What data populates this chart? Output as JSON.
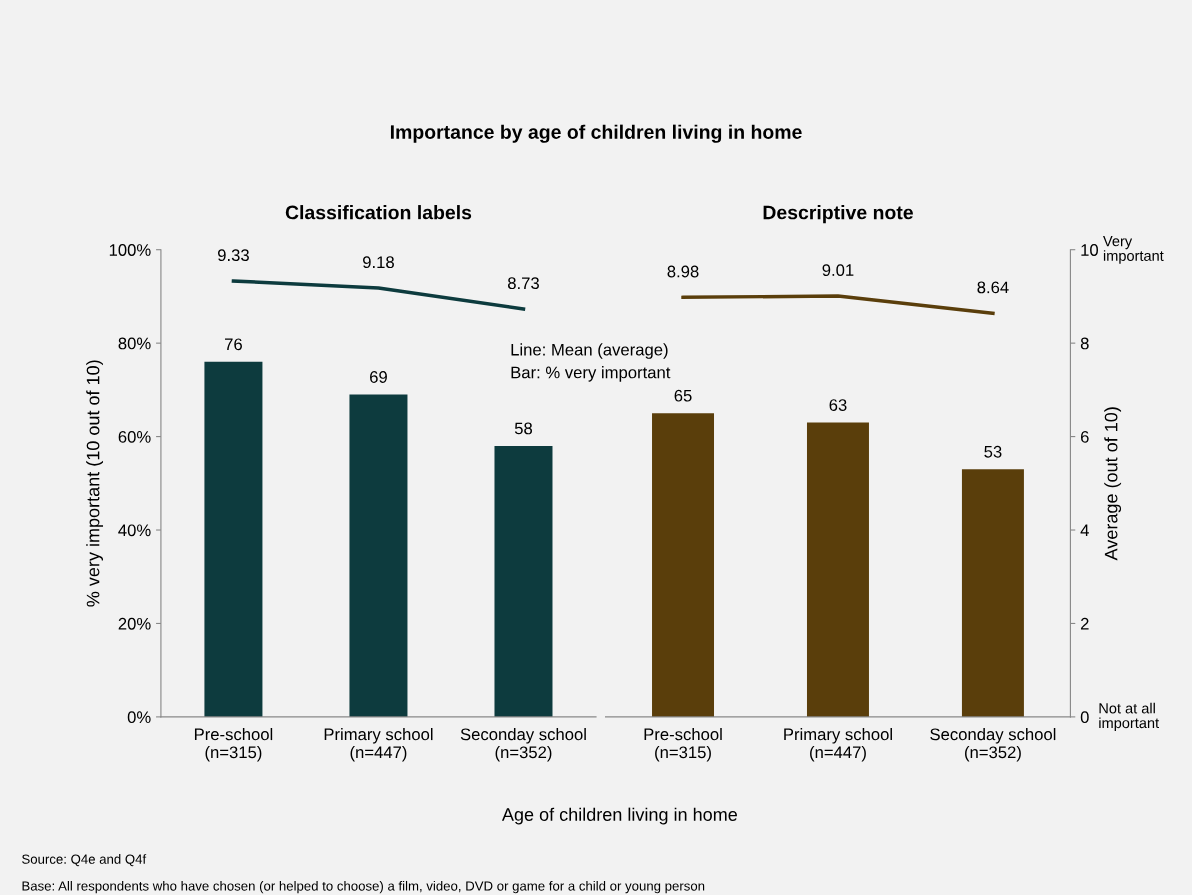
{
  "chart_data": [
    {
      "type": "bar",
      "title": "Importance by age of children living in home",
      "subtitle": "Classification labels",
      "xlabel": "Age of children living in home",
      "ylabel": "% very important (10 out of 10)",
      "categories": [
        "Pre-school\n(n=315)",
        "Primary school\n(n=447)",
        "Seconday school\n(n=352)"
      ],
      "series": [
        {
          "color": "#0d3b3e",
          "values": [
            76,
            69,
            58
          ]
        },
        {
          "type": "line",
          "axis": "y2",
          "color": "#0d3b3e",
          "values": [
            9.33,
            9.18,
            8.73
          ]
        }
      ],
      "ylim": [
        0,
        100
      ],
      "yticks": [
        {
          "value": 0,
          "label": "0%"
        },
        {
          "value": 20,
          "label": "20%"
        },
        {
          "value": 40,
          "label": "40%"
        },
        {
          "value": 60,
          "label": "60%"
        },
        {
          "value": 80,
          "label": "80%"
        },
        {
          "value": 100,
          "label": "100%"
        }
      ],
      "y2lim": [
        0,
        10
      ],
      "data_labels": true,
      "grid": false,
      "marker": "none",
      "line_style": "solid",
      "annotations": [
        "Line: Mean (average)\nBar: % very important",
        "Source: Q4e and Q4f",
        "Base: All respondents who have chosen (or helped to choose) a film, video, DVD or game for a child or young person"
      ]
    },
    {
      "type": "bar",
      "subtitle": "Descriptive note",
      "y2label": "Average (out of 10)",
      "categories": [
        "Pre-school\n(n=315)",
        "Primary school\n(n=447)",
        "Seconday school\n(n=352)"
      ],
      "series": [
        {
          "color": "#5a3e0b",
          "values": [
            65,
            63,
            53
          ]
        },
        {
          "type": "line",
          "axis": "y2",
          "color": "#5a3e0b",
          "values": [
            8.98,
            9.01,
            8.64
          ]
        }
      ],
      "ylim": [
        0,
        100
      ],
      "y2lim": [
        0,
        10
      ],
      "y2ticks": [
        0,
        2,
        4,
        6,
        8,
        10
      ],
      "data_labels": true,
      "grid": false,
      "marker": "none",
      "line_style": "solid",
      "annotations": [
        "Very\nimportant",
        "Not at all\nimportant"
      ]
    }
  ]
}
